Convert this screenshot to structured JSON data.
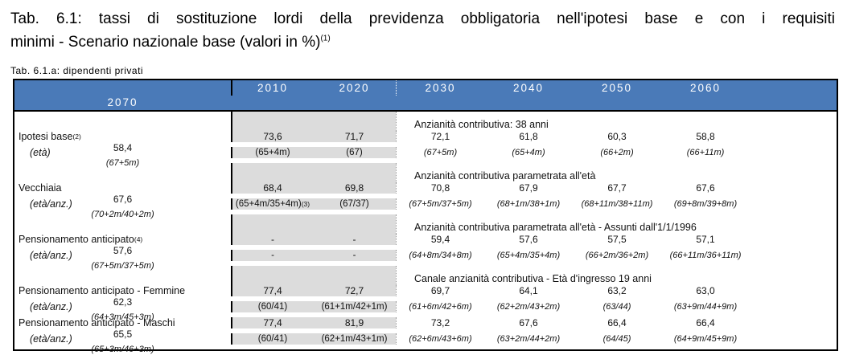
{
  "title": {
    "line1": "Tab. 6.1: tassi di sostituzione lordi della previdenza obbligatoria nell'ipotesi base e con i requisiti",
    "line2": "minimi - Scenario nazionale base (valori in %)",
    "footnote_marker": "(1)"
  },
  "subtitle": "Tab. 6.1.a: dipendenti privati",
  "colors": {
    "header_blue": "#4a7ab8",
    "body_gray": "#dcdcdc"
  },
  "table": {
    "columns": [
      "2010",
      "2020",
      "2030",
      "2040",
      "2050",
      "2060",
      "2070"
    ],
    "rows": [
      {
        "type": "section",
        "label": "Anzianità contributiva: 38 anni"
      },
      {
        "type": "data",
        "label": "Ipotesi base",
        "sup": "(2)",
        "cells": [
          "73,6",
          "71,7",
          "72,1",
          "61,8",
          "60,3",
          "58,8",
          "58,4"
        ]
      },
      {
        "type": "sub",
        "label": "(età)",
        "cells": [
          "(65+4m)",
          "(67)",
          "(67+5m)",
          "(65+4m)",
          "(66+2m)",
          "(66+11m)",
          "(67+5m)"
        ]
      },
      {
        "type": "section",
        "label": "Anzianità contributiva parametrata all'età"
      },
      {
        "type": "data",
        "label": "Vecchiaia",
        "cells": [
          "68,4",
          "69,8",
          "70,8",
          "67,9",
          "67,7",
          "67,6",
          "67,6"
        ]
      },
      {
        "type": "sub",
        "label": "(età/anz.)",
        "cells": [
          {
            "t": "(65+4m/35+4m)",
            "sup": "(3)"
          },
          "(67/37)",
          "(67+5m/37+5m)",
          "(68+1m/38+1m)",
          "(68+11m/38+11m)",
          "(69+8m/39+8m)",
          "(70+2m/40+2m)"
        ]
      },
      {
        "type": "section",
        "label": "Anzianità contributiva parametrata all'età - Assunti dall'1/1/1996"
      },
      {
        "type": "data",
        "label": "Pensionamento anticipato",
        "sup": "(4)",
        "cells": [
          "-",
          "-",
          "59,4",
          "57,6",
          "57,5",
          "57,1",
          "57,6"
        ]
      },
      {
        "type": "sub",
        "label": "(età/anz.)",
        "cells": [
          "-",
          "-",
          "(64+8m/34+8m)",
          "(65+4m/35+4m)",
          "(66+2m/36+2m)",
          "(66+11m/36+11m)",
          "(67+5m/37+5m)"
        ]
      },
      {
        "type": "section",
        "label": "Canale anzianità contributiva - Età d'ingresso 19 anni"
      },
      {
        "type": "data",
        "label": "Pensionamento anticipato - Femmine",
        "cells": [
          "77,4",
          "72,7",
          "69,7",
          "64,1",
          "63,2",
          "63,0",
          "62,3"
        ]
      },
      {
        "type": "sub",
        "label": "(età/anz.)",
        "cells": [
          "(60/41)",
          "(61+1m/42+1m)",
          "(61+6m/42+6m)",
          "(62+2m/43+2m)",
          "(63/44)",
          "(63+9m/44+9m)",
          "(64+3m/45+3m)"
        ]
      },
      {
        "type": "data",
        "label": "Pensionamento anticipato - Maschi",
        "cells": [
          "77,4",
          "81,9",
          "73,2",
          "67,6",
          "66,4",
          "66,4",
          "65,5"
        ]
      },
      {
        "type": "sub",
        "label": "(età/anz.)",
        "cells": [
          "(60/41)",
          "(62+1m/43+1m)",
          "(62+6m/43+6m)",
          "(63+2m/44+2m)",
          "(64/45)",
          "(64+9m/45+9m)",
          "(65+3m/46+3m)"
        ]
      }
    ]
  }
}
